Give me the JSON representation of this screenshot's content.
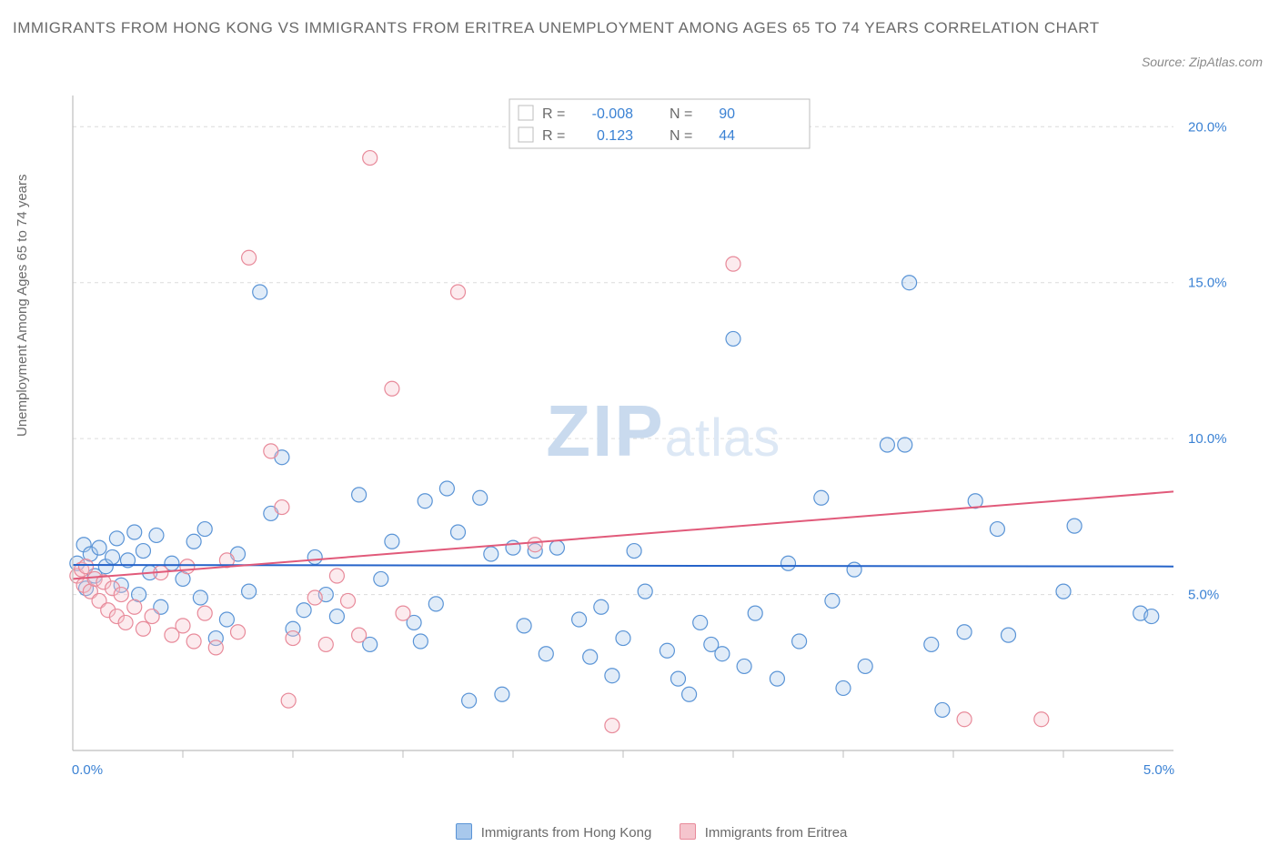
{
  "title": "IMMIGRANTS FROM HONG KONG VS IMMIGRANTS FROM ERITREA UNEMPLOYMENT AMONG AGES 65 TO 74 YEARS CORRELATION CHART",
  "source": "Source: ZipAtlas.com",
  "ylabel": "Unemployment Among Ages 65 to 74 years",
  "watermark": "ZIPatlas",
  "chart": {
    "type": "scatter",
    "background_color": "#ffffff",
    "grid_color": "#dcdcdc",
    "axis_color": "#bdbdbd",
    "tick_label_color": "#3b82d4",
    "xlim": [
      0.0,
      5.0
    ],
    "ylim": [
      0.0,
      21.0
    ],
    "x_ticks": [
      0.0,
      5.0
    ],
    "x_tick_labels": [
      "0.0%",
      "5.0%"
    ],
    "x_minor_ticks": [
      0.5,
      1.0,
      1.5,
      2.0,
      2.5,
      3.0,
      3.5,
      4.0,
      4.5
    ],
    "y_ticks": [
      5.0,
      10.0,
      15.0,
      20.0
    ],
    "y_tick_labels": [
      "5.0%",
      "10.0%",
      "15.0%",
      "20.0%"
    ],
    "marker_radius": 8,
    "marker_fill_opacity": 0.35,
    "marker_stroke_width": 1.2,
    "trend_line_width": 2
  },
  "series": [
    {
      "name": "Immigrants from Hong Kong",
      "color_fill": "#a8c8ec",
      "color_stroke": "#5a94d6",
      "trend_color": "#2563c9",
      "R": "-0.008",
      "N": "90",
      "trend": {
        "x1": 0.0,
        "y1": 5.95,
        "x2": 5.0,
        "y2": 5.9
      },
      "points": [
        [
          0.02,
          6.0
        ],
        [
          0.05,
          6.6
        ],
        [
          0.06,
          5.2
        ],
        [
          0.08,
          6.3
        ],
        [
          0.1,
          5.6
        ],
        [
          0.12,
          6.5
        ],
        [
          0.15,
          5.9
        ],
        [
          0.18,
          6.2
        ],
        [
          0.2,
          6.8
        ],
        [
          0.22,
          5.3
        ],
        [
          0.25,
          6.1
        ],
        [
          0.28,
          7.0
        ],
        [
          0.3,
          5.0
        ],
        [
          0.32,
          6.4
        ],
        [
          0.35,
          5.7
        ],
        [
          0.38,
          6.9
        ],
        [
          0.4,
          4.6
        ],
        [
          0.45,
          6.0
        ],
        [
          0.5,
          5.5
        ],
        [
          0.55,
          6.7
        ],
        [
          0.58,
          4.9
        ],
        [
          0.6,
          7.1
        ],
        [
          0.65,
          3.6
        ],
        [
          0.7,
          4.2
        ],
        [
          0.75,
          6.3
        ],
        [
          0.8,
          5.1
        ],
        [
          0.85,
          14.7
        ],
        [
          0.9,
          7.6
        ],
        [
          0.95,
          9.4
        ],
        [
          1.0,
          3.9
        ],
        [
          1.05,
          4.5
        ],
        [
          1.1,
          6.2
        ],
        [
          1.15,
          5.0
        ],
        [
          1.2,
          4.3
        ],
        [
          1.3,
          8.2
        ],
        [
          1.35,
          3.4
        ],
        [
          1.4,
          5.5
        ],
        [
          1.45,
          6.7
        ],
        [
          1.55,
          4.1
        ],
        [
          1.58,
          3.5
        ],
        [
          1.6,
          8.0
        ],
        [
          1.65,
          4.7
        ],
        [
          1.7,
          8.4
        ],
        [
          1.75,
          7.0
        ],
        [
          1.8,
          1.6
        ],
        [
          1.85,
          8.1
        ],
        [
          1.9,
          6.3
        ],
        [
          1.95,
          1.8
        ],
        [
          2.0,
          6.5
        ],
        [
          2.05,
          4.0
        ],
        [
          2.1,
          6.4
        ],
        [
          2.15,
          3.1
        ],
        [
          2.2,
          6.5
        ],
        [
          2.3,
          4.2
        ],
        [
          2.35,
          3.0
        ],
        [
          2.4,
          4.6
        ],
        [
          2.45,
          2.4
        ],
        [
          2.5,
          3.6
        ],
        [
          2.55,
          6.4
        ],
        [
          2.6,
          5.1
        ],
        [
          2.7,
          3.2
        ],
        [
          2.75,
          2.3
        ],
        [
          2.8,
          1.8
        ],
        [
          2.85,
          4.1
        ],
        [
          2.9,
          3.4
        ],
        [
          2.95,
          3.1
        ],
        [
          3.0,
          13.2
        ],
        [
          3.05,
          2.7
        ],
        [
          3.1,
          4.4
        ],
        [
          3.2,
          2.3
        ],
        [
          3.25,
          6.0
        ],
        [
          3.3,
          3.5
        ],
        [
          3.4,
          8.1
        ],
        [
          3.45,
          4.8
        ],
        [
          3.5,
          2.0
        ],
        [
          3.55,
          5.8
        ],
        [
          3.6,
          2.7
        ],
        [
          3.7,
          9.8
        ],
        [
          3.78,
          9.8
        ],
        [
          3.8,
          15.0
        ],
        [
          3.9,
          3.4
        ],
        [
          3.95,
          1.3
        ],
        [
          4.05,
          3.8
        ],
        [
          4.1,
          8.0
        ],
        [
          4.2,
          7.1
        ],
        [
          4.25,
          3.7
        ],
        [
          4.5,
          5.1
        ],
        [
          4.55,
          7.2
        ],
        [
          4.85,
          4.4
        ],
        [
          4.9,
          4.3
        ]
      ]
    },
    {
      "name": "Immigrants from Eritrea",
      "color_fill": "#f5c5cd",
      "color_stroke": "#e88a9a",
      "trend_color": "#e15a7a",
      "R": "0.123",
      "N": "44",
      "trend": {
        "x1": 0.0,
        "y1": 5.5,
        "x2": 5.0,
        "y2": 8.3
      },
      "points": [
        [
          0.02,
          5.6
        ],
        [
          0.04,
          5.8
        ],
        [
          0.05,
          5.3
        ],
        [
          0.06,
          5.9
        ],
        [
          0.08,
          5.1
        ],
        [
          0.1,
          5.5
        ],
        [
          0.12,
          4.8
        ],
        [
          0.14,
          5.4
        ],
        [
          0.16,
          4.5
        ],
        [
          0.18,
          5.2
        ],
        [
          0.2,
          4.3
        ],
        [
          0.22,
          5.0
        ],
        [
          0.24,
          4.1
        ],
        [
          0.28,
          4.6
        ],
        [
          0.32,
          3.9
        ],
        [
          0.36,
          4.3
        ],
        [
          0.4,
          5.7
        ],
        [
          0.45,
          3.7
        ],
        [
          0.5,
          4.0
        ],
        [
          0.52,
          5.9
        ],
        [
          0.55,
          3.5
        ],
        [
          0.6,
          4.4
        ],
        [
          0.65,
          3.3
        ],
        [
          0.7,
          6.1
        ],
        [
          0.75,
          3.8
        ],
        [
          0.8,
          15.8
        ],
        [
          0.9,
          9.6
        ],
        [
          0.95,
          7.8
        ],
        [
          1.0,
          3.6
        ],
        [
          0.98,
          1.6
        ],
        [
          1.1,
          4.9
        ],
        [
          1.15,
          3.4
        ],
        [
          1.2,
          5.6
        ],
        [
          1.25,
          4.8
        ],
        [
          1.3,
          3.7
        ],
        [
          1.35,
          19.0
        ],
        [
          1.45,
          11.6
        ],
        [
          1.5,
          4.4
        ],
        [
          1.75,
          14.7
        ],
        [
          2.1,
          6.6
        ],
        [
          2.45,
          0.8
        ],
        [
          3.0,
          15.6
        ],
        [
          4.05,
          1.0
        ],
        [
          4.4,
          1.0
        ]
      ]
    }
  ],
  "stat_box": {
    "labels": {
      "r": "R =",
      "n": "N ="
    }
  },
  "legend": {
    "series1": "Immigrants from Hong Kong",
    "series2": "Immigrants from Eritrea"
  }
}
